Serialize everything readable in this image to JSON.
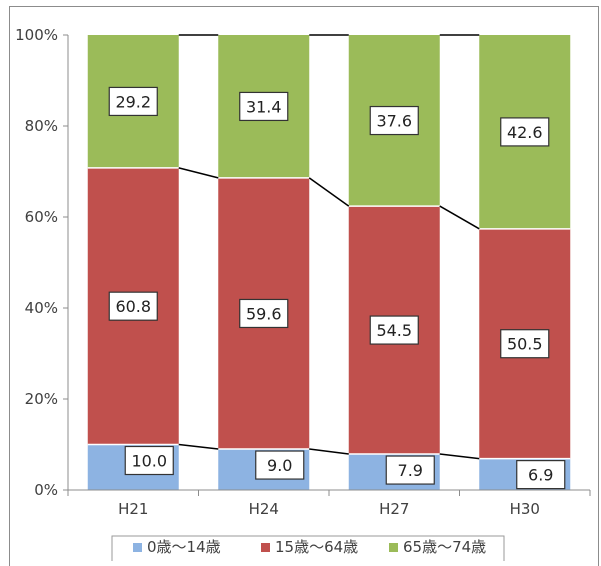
{
  "chart_data": {
    "type": "bar",
    "stacked": "percent",
    "categories": [
      "H21",
      "H24",
      "H27",
      "H30"
    ],
    "series": [
      {
        "name": "0歳～14歳",
        "values": [
          10.0,
          9.0,
          7.9,
          6.9
        ],
        "labels": [
          "10.0",
          "9.0",
          "7.9",
          "6.9"
        ],
        "color": "#8db3e2"
      },
      {
        "name": "15歳～64歳",
        "values": [
          60.8,
          59.6,
          54.5,
          50.5
        ],
        "labels": [
          "60.8",
          "59.6",
          "54.5",
          "50.5"
        ],
        "color": "#c0504d"
      },
      {
        "name": "65歳～74歳",
        "values": [
          29.2,
          31.4,
          37.6,
          42.6
        ],
        "labels": [
          "29.2",
          "31.4",
          "37.6",
          "42.6"
        ],
        "color": "#9bbb59"
      }
    ],
    "yticks": [
      "0%",
      "20%",
      "40%",
      "60%",
      "80%",
      "100%"
    ],
    "ylim": [
      0,
      100
    ],
    "series_lines": true,
    "legend": "bottom",
    "grid": false
  }
}
